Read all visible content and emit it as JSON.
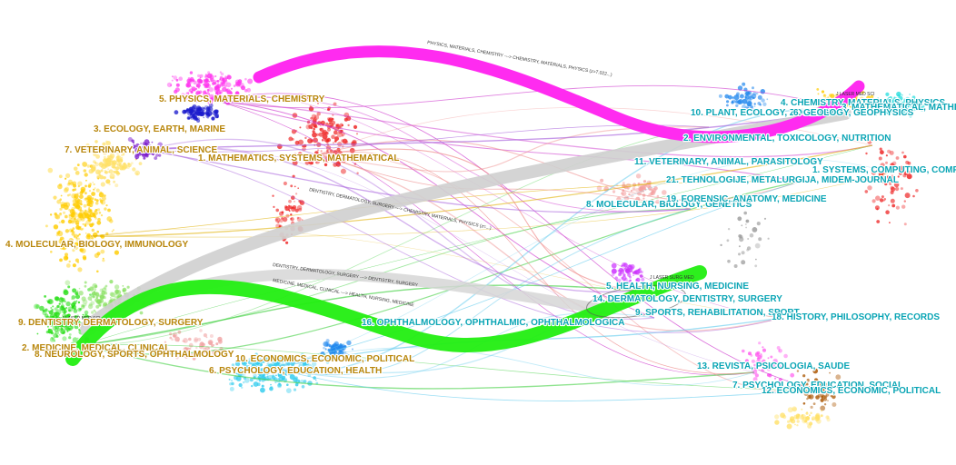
{
  "colors": {
    "magenta": "#ff2bf0",
    "green": "#22ee11",
    "grey": "#c8c8c8",
    "left_label": "#b8860b",
    "right_label": "#0aa5b5"
  },
  "citing_clusters": [
    {
      "id": "l5",
      "label": "5. PHYSICS, MATERIALS, CHEMISTRY",
      "color": "#ff33ee"
    },
    {
      "id": "l3",
      "label": "3. ECOLOGY, EARTH, MARINE",
      "color": "#1a1acc"
    },
    {
      "id": "l7",
      "label": "7. VETERINARY, ANIMAL, SCIENCE",
      "color": "#7a1acc"
    },
    {
      "id": "l1",
      "label": "1. MATHEMATICS, SYSTEMS, MATHEMATICAL",
      "color": "#ee2222"
    },
    {
      "id": "l4",
      "label": "4. MOLECULAR, BIOLOGY, IMMUNOLOGY",
      "color": "#ffcc00"
    },
    {
      "id": "l9",
      "label": "9. DENTISTRY, DERMATOLOGY, SURGERY",
      "color": "#c8c8c8"
    },
    {
      "id": "l2",
      "label": "2. MEDICINE, MEDICAL, CLINICAL",
      "color": "#22dd11"
    },
    {
      "id": "l8",
      "label": "8. NEUROLOGY, SPORTS, OPHTHALMOLOGY",
      "color": "#55cc44"
    },
    {
      "id": "l10",
      "label": "10. ECONOMICS, ECONOMIC, POLITICAL",
      "color": "#2288ee"
    },
    {
      "id": "l6",
      "label": "6. PSYCHOLOGY, EDUCATION, HEALTH",
      "color": "#33ccee"
    }
  ],
  "cited_clusters": [
    {
      "id": "r4",
      "label": "4. CHEMISTRY, MATERIALS, PHYSICS"
    },
    {
      "id": "r3",
      "label": "3. MATHEMATICAL, MATHEMATICS"
    },
    {
      "id": "r10",
      "label": "10. PLANT, ECOLOGY, ZOOLOGY"
    },
    {
      "id": "r6",
      "label": "6. GEOLOGY, GEOPHYSICS"
    },
    {
      "id": "r2",
      "label": "2. ENVIRONMENTAL, TOXICOLOGY, NUTRITION"
    },
    {
      "id": "r11",
      "label": "11. VETERINARY, ANIMAL, PARASITOLOGY"
    },
    {
      "id": "r1",
      "label": "1. SYSTEMS, COMPUTING, COMPUTER"
    },
    {
      "id": "r21",
      "label": "21. TEHNOLOGIJE, METALURGIJA, MIDEM-JOURNAL"
    },
    {
      "id": "r8",
      "label": "8. MOLECULAR, BIOLOGY, GENETICS"
    },
    {
      "id": "r19",
      "label": "19. FORENSIC, ANATOMY, MEDICINE"
    },
    {
      "id": "r5",
      "label": "5. HEALTH, NURSING, MEDICINE"
    },
    {
      "id": "r14",
      "label": "14. DERMATOLOGY, DENTISTRY, SURGERY"
    },
    {
      "id": "r9",
      "label": "9. SPORTS, REHABILITATION, SPORT"
    },
    {
      "id": "r16",
      "label": "16. OPHTHALMOLOGY, OPHTHALMIC, OPHTHALMOLOGICA"
    },
    {
      "id": "r18",
      "label": "18. HISTORY, PHILOSOPHY, RECORDS"
    },
    {
      "id": "r13",
      "label": "13. REVISTA, PSICOLOGIA, SAUDE"
    },
    {
      "id": "r7",
      "label": "7. PSYCHOLOGY, EDUCATION, SOCIAL"
    },
    {
      "id": "r12",
      "label": "12. ECONOMICS, ECONOMIC, POLITICAL"
    }
  ],
  "main_flows": {
    "physics": "PHYSICS, MATERIALS, CHEMISTRY ---> CHEMISTRY, MATERIALS, PHYSICS (z=7.022...)",
    "dentistry": "DENTISTRY, DERMATOLOGY, SURGERY ---> CHEMISTRY, MATERIALS, PHYSICS (z=...)",
    "dentistry_dentistry": "DENTISTRY, DERMATOLOGY, SURGERY ---> DENTISTRY, SURGERY",
    "medicine": "MEDICINE, MEDICAL, CLINICAL ---> HEALTH, NURSING, MEDICINE"
  },
  "small_tags": {
    "top_right": "J LASER MED SCI",
    "mid": "J LASER SURG MED",
    "left_bottom": "J LASER MED SCI"
  }
}
